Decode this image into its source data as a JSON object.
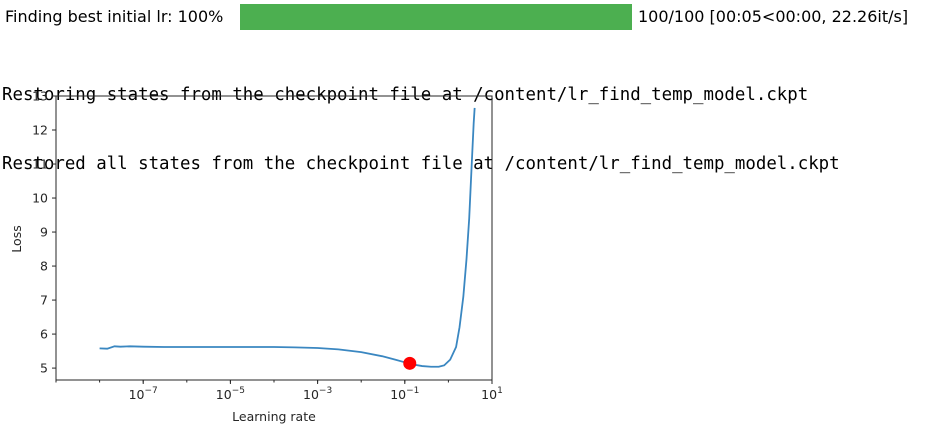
{
  "progress": {
    "label": "Finding best initial lr: 100%",
    "fraction": 1.0,
    "stats": "100/100 [00:05<00:00, 22.26it/s]",
    "bar_color": "#4caf50"
  },
  "log_lines": [
    "Restoring states from the checkpoint file at /content/lr_find_temp_model.ckpt",
    "Restored all states from the checkpoint file at /content/lr_find_temp_model.ckpt"
  ],
  "chart_data": {
    "type": "line",
    "xlabel": "Learning rate",
    "ylabel": "Loss",
    "x_scale": "log",
    "xlim": [
      1e-09,
      10
    ],
    "ylim": [
      4.65,
      13
    ],
    "x_ticks": [
      1e-07,
      1e-05,
      0.001,
      0.1,
      10
    ],
    "x_tick_labels": [
      {
        "base": "10",
        "exp": "−7"
      },
      {
        "base": "10",
        "exp": "−5"
      },
      {
        "base": "10",
        "exp": "−3"
      },
      {
        "base": "10",
        "exp": "−1"
      },
      {
        "base": "10",
        "exp": "1"
      }
    ],
    "y_ticks": [
      "5",
      "6",
      "7",
      "8",
      "9",
      "10",
      "11",
      "12",
      "13"
    ],
    "grid": false,
    "series": [
      {
        "color": "#3a87c1",
        "points": [
          [
            1e-08,
            5.58
          ],
          [
            1.5e-08,
            5.57
          ],
          [
            2.2e-08,
            5.64
          ],
          [
            3e-08,
            5.63
          ],
          [
            5e-08,
            5.64
          ],
          [
            1e-07,
            5.63
          ],
          [
            3e-07,
            5.62
          ],
          [
            1e-06,
            5.62
          ],
          [
            3e-06,
            5.62
          ],
          [
            1e-05,
            5.62
          ],
          [
            3e-05,
            5.62
          ],
          [
            0.0001,
            5.62
          ],
          [
            0.0003,
            5.61
          ],
          [
            0.001,
            5.59
          ],
          [
            0.003,
            5.55
          ],
          [
            0.01,
            5.47
          ],
          [
            0.03,
            5.35
          ],
          [
            0.06,
            5.25
          ],
          [
            0.1,
            5.17
          ],
          [
            0.15,
            5.11
          ],
          [
            0.25,
            5.06
          ],
          [
            0.4,
            5.04
          ],
          [
            0.6,
            5.04
          ],
          [
            0.8,
            5.08
          ],
          [
            1.1,
            5.25
          ],
          [
            1.5,
            5.62
          ],
          [
            1.8,
            6.2
          ],
          [
            2.2,
            7.1
          ],
          [
            2.6,
            8.2
          ],
          [
            3.0,
            9.4
          ],
          [
            3.4,
            10.9
          ],
          [
            3.8,
            12.2
          ],
          [
            4.0,
            12.65
          ]
        ]
      }
    ],
    "suggested_point": {
      "x": 0.13,
      "y": 5.14,
      "color": "#ff0000"
    }
  }
}
